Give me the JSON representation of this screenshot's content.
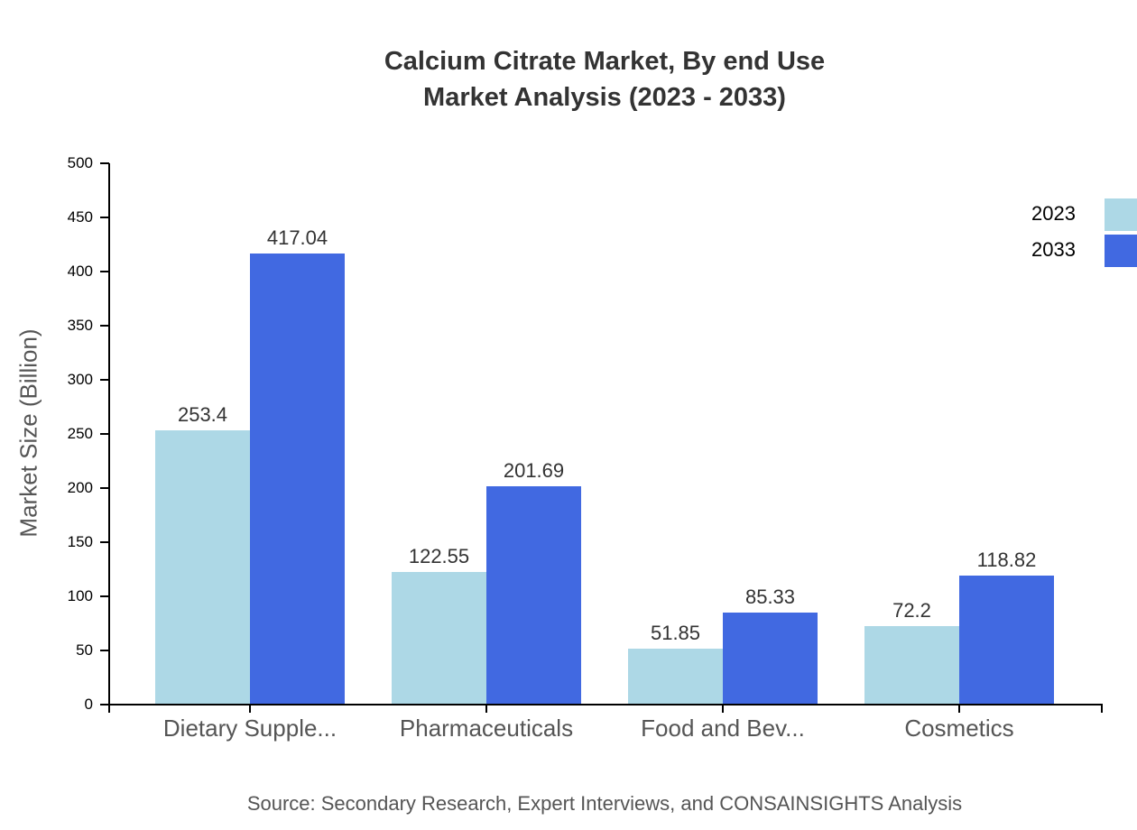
{
  "chart_data": {
    "type": "bar",
    "title": "Calcium Citrate Market, By end Use",
    "subtitle": "Market Analysis (2023 - 2033)",
    "xlabel": "",
    "ylabel": "Market Size (Billion)",
    "categories": [
      "Dietary Supple...",
      "Pharmaceuticals",
      "Food and Bev...",
      "Cosmetics"
    ],
    "series": [
      {
        "name": "2023",
        "color": "#add8e6",
        "values": [
          253.4,
          122.55,
          51.85,
          72.2
        ]
      },
      {
        "name": "2033",
        "color": "#4169e1",
        "values": [
          417.04,
          201.69,
          85.33,
          118.82
        ]
      }
    ],
    "ylim": [
      0,
      500
    ],
    "yticks": [
      0,
      50,
      100,
      150,
      200,
      250,
      300,
      350,
      400,
      450,
      500
    ],
    "grid": false,
    "legend_position": "top-right",
    "data_labels": true
  },
  "source": "Source: Secondary Research, Expert Interviews, and CONSAINSIGHTS Analysis"
}
